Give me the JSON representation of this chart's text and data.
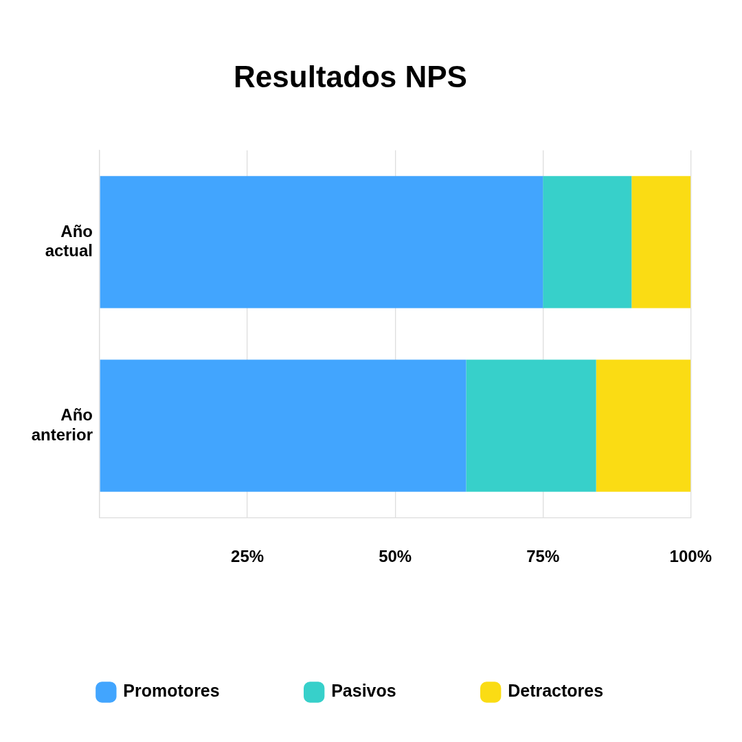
{
  "chart_data": {
    "type": "bar",
    "title": "Resultados NPS",
    "orientation": "horizontal",
    "stacked": true,
    "categories": [
      "Año actual",
      "Año anterior"
    ],
    "series": [
      {
        "name": "Promotores",
        "color": "#42a5fe",
        "values": [
          75,
          62
        ]
      },
      {
        "name": "Pasivos",
        "color": "#37d0ca",
        "values": [
          15,
          22
        ]
      },
      {
        "name": "Detractores",
        "color": "#fadc14",
        "values": [
          10,
          16
        ]
      }
    ],
    "xlim": [
      0,
      100
    ],
    "xticks": [
      {
        "value": 0,
        "label": null
      },
      {
        "value": 25,
        "label": "25%"
      },
      {
        "value": 50,
        "label": "50%"
      },
      {
        "value": 75,
        "label": "75%"
      },
      {
        "value": 100,
        "label": "100%"
      }
    ],
    "grid": "x",
    "legend": "bottom"
  }
}
